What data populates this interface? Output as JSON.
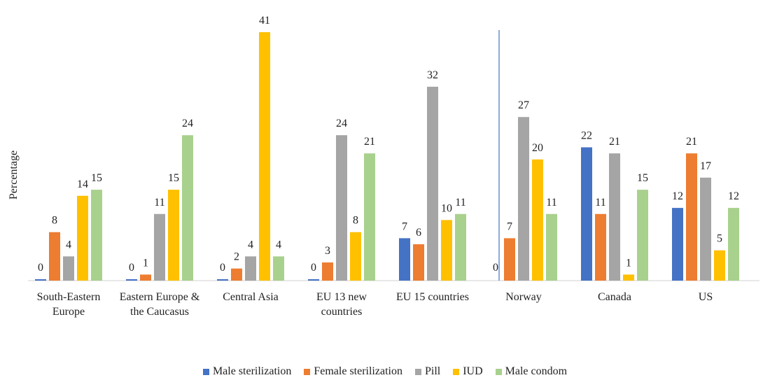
{
  "chart_data": {
    "type": "bar",
    "y_label": "Percentage",
    "categories": [
      "South-Eastern Europe",
      "Eastern Europe & the Caucasus",
      "Central Asia",
      "EU 13 new countries",
      "EU 15 countries",
      "Norway",
      "Canada",
      "US"
    ],
    "series": [
      {
        "name": "Male sterilization",
        "color": "#4472c4",
        "values": [
          0,
          0,
          0,
          0,
          7,
          0,
          22,
          12
        ]
      },
      {
        "name": "Female sterilization",
        "color": "#ed7d31",
        "values": [
          8,
          1,
          2,
          3,
          6,
          7,
          11,
          21
        ]
      },
      {
        "name": "Pill",
        "color": "#a5a5a5",
        "values": [
          4,
          11,
          4,
          24,
          32,
          27,
          21,
          17
        ]
      },
      {
        "name": "IUD",
        "color": "#ffc000",
        "values": [
          14,
          15,
          41,
          8,
          10,
          20,
          1,
          5
        ]
      },
      {
        "name": "Male condom",
        "color": "#a9d18e",
        "values": [
          15,
          24,
          4,
          21,
          11,
          11,
          15,
          12
        ]
      }
    ],
    "ylim": [
      0,
      41
    ],
    "legend": "bottom"
  }
}
